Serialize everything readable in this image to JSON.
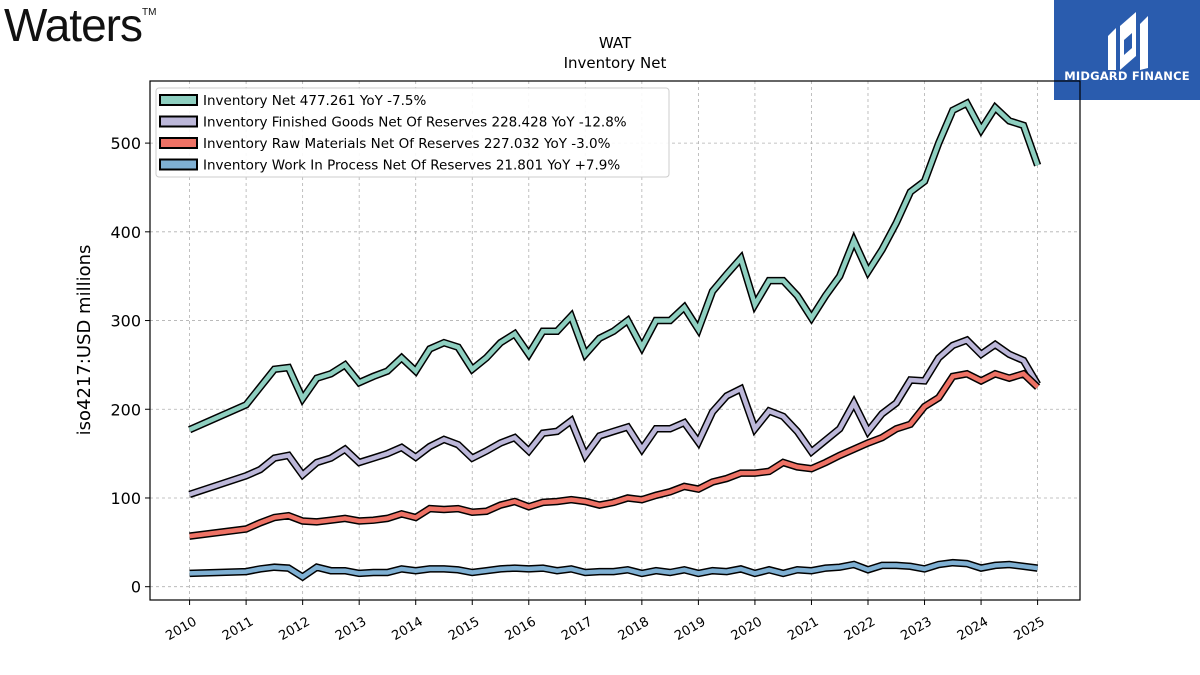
{
  "logo": {
    "company": "Waters",
    "tm": "TM"
  },
  "brand": {
    "name": "MIDGARD FINANCE",
    "color": "#2a5cae"
  },
  "chart_data": {
    "type": "line",
    "title": "WAT",
    "subtitle": "Inventory Net",
    "ylabel": "iso4217:USD  millions",
    "xlabel": "",
    "ylim": [
      -15,
      570
    ],
    "xlim": [
      2009.3,
      2025.75
    ],
    "yticks": [
      0,
      100,
      200,
      300,
      400,
      500
    ],
    "xticks": [
      "2010",
      "2011",
      "2012",
      "2013",
      "2014",
      "2015",
      "2016",
      "2017",
      "2018",
      "2019",
      "2020",
      "2021",
      "2022",
      "2023",
      "2024",
      "2025"
    ],
    "grid": true,
    "legend_position": "top-left",
    "series": [
      {
        "name": "Inventory Net  477.261 YoY -7.5%",
        "color": "#8ecfc0",
        "points": [
          [
            2010.0,
            177
          ],
          [
            2011.0,
            205
          ],
          [
            2011.25,
            225
          ],
          [
            2011.5,
            245
          ],
          [
            2011.75,
            247
          ],
          [
            2012.0,
            212
          ],
          [
            2012.25,
            235
          ],
          [
            2012.5,
            240
          ],
          [
            2012.75,
            250
          ],
          [
            2013.0,
            230
          ],
          [
            2013.25,
            237
          ],
          [
            2013.5,
            243
          ],
          [
            2013.75,
            258
          ],
          [
            2014.0,
            243
          ],
          [
            2014.25,
            268
          ],
          [
            2014.5,
            275
          ],
          [
            2014.75,
            270
          ],
          [
            2015.0,
            245
          ],
          [
            2015.25,
            258
          ],
          [
            2015.5,
            275
          ],
          [
            2015.75,
            285
          ],
          [
            2016.0,
            262
          ],
          [
            2016.25,
            288
          ],
          [
            2016.5,
            288
          ],
          [
            2016.75,
            305
          ],
          [
            2017.0,
            262
          ],
          [
            2017.25,
            280
          ],
          [
            2017.5,
            288
          ],
          [
            2017.75,
            300
          ],
          [
            2018.0,
            270
          ],
          [
            2018.25,
            300
          ],
          [
            2018.5,
            300
          ],
          [
            2018.75,
            315
          ],
          [
            2019.0,
            290
          ],
          [
            2019.25,
            333
          ],
          [
            2019.5,
            352
          ],
          [
            2019.75,
            370
          ],
          [
            2020.0,
            318
          ],
          [
            2020.25,
            345
          ],
          [
            2020.5,
            345
          ],
          [
            2020.75,
            328
          ],
          [
            2021.0,
            303
          ],
          [
            2021.25,
            328
          ],
          [
            2021.5,
            350
          ],
          [
            2021.75,
            390
          ],
          [
            2022.0,
            355
          ],
          [
            2022.25,
            380
          ],
          [
            2022.5,
            410
          ],
          [
            2022.75,
            445
          ],
          [
            2023.0,
            457
          ],
          [
            2023.25,
            500
          ],
          [
            2023.5,
            537
          ],
          [
            2023.75,
            545
          ],
          [
            2024.0,
            515
          ],
          [
            2024.25,
            540
          ],
          [
            2024.5,
            525
          ],
          [
            2024.75,
            520
          ],
          [
            2025.0,
            475
          ]
        ]
      },
      {
        "name": "Inventory Finished Goods Net Of Reserves  228.428 YoY -12.8%",
        "color": "#bcb7d9",
        "points": [
          [
            2010.0,
            104
          ],
          [
            2011.0,
            125
          ],
          [
            2011.25,
            132
          ],
          [
            2011.5,
            145
          ],
          [
            2011.75,
            148
          ],
          [
            2012.0,
            126
          ],
          [
            2012.25,
            140
          ],
          [
            2012.5,
            145
          ],
          [
            2012.75,
            155
          ],
          [
            2013.0,
            140
          ],
          [
            2013.25,
            145
          ],
          [
            2013.5,
            150
          ],
          [
            2013.75,
            157
          ],
          [
            2014.0,
            146
          ],
          [
            2014.25,
            158
          ],
          [
            2014.5,
            166
          ],
          [
            2014.75,
            160
          ],
          [
            2015.0,
            145
          ],
          [
            2015.25,
            153
          ],
          [
            2015.5,
            162
          ],
          [
            2015.75,
            168
          ],
          [
            2016.0,
            153
          ],
          [
            2016.25,
            173
          ],
          [
            2016.5,
            175
          ],
          [
            2016.75,
            187
          ],
          [
            2017.0,
            148
          ],
          [
            2017.25,
            170
          ],
          [
            2017.5,
            175
          ],
          [
            2017.75,
            180
          ],
          [
            2018.0,
            155
          ],
          [
            2018.25,
            178
          ],
          [
            2018.5,
            178
          ],
          [
            2018.75,
            185
          ],
          [
            2019.0,
            163
          ],
          [
            2019.25,
            197
          ],
          [
            2019.5,
            215
          ],
          [
            2019.75,
            223
          ],
          [
            2020.0,
            178
          ],
          [
            2020.25,
            198
          ],
          [
            2020.5,
            192
          ],
          [
            2020.75,
            175
          ],
          [
            2021.0,
            152
          ],
          [
            2021.25,
            165
          ],
          [
            2021.5,
            178
          ],
          [
            2021.75,
            207
          ],
          [
            2022.0,
            175
          ],
          [
            2022.25,
            195
          ],
          [
            2022.5,
            207
          ],
          [
            2022.75,
            233
          ],
          [
            2023.0,
            232
          ],
          [
            2023.25,
            258
          ],
          [
            2023.5,
            272
          ],
          [
            2023.75,
            278
          ],
          [
            2024.0,
            262
          ],
          [
            2024.25,
            273
          ],
          [
            2024.5,
            262
          ],
          [
            2024.75,
            255
          ],
          [
            2025.0,
            228
          ]
        ]
      },
      {
        "name": "Inventory Raw Materials Net Of Reserves  227.032 YoY -3.0%",
        "color": "#ee7265",
        "points": [
          [
            2010.0,
            57
          ],
          [
            2011.0,
            65
          ],
          [
            2011.25,
            72
          ],
          [
            2011.5,
            78
          ],
          [
            2011.75,
            80
          ],
          [
            2012.0,
            74
          ],
          [
            2012.25,
            73
          ],
          [
            2012.5,
            75
          ],
          [
            2012.75,
            77
          ],
          [
            2013.0,
            74
          ],
          [
            2013.25,
            75
          ],
          [
            2013.5,
            77
          ],
          [
            2013.75,
            82
          ],
          [
            2014.0,
            78
          ],
          [
            2014.25,
            88
          ],
          [
            2014.5,
            87
          ],
          [
            2014.75,
            88
          ],
          [
            2015.0,
            84
          ],
          [
            2015.25,
            85
          ],
          [
            2015.5,
            92
          ],
          [
            2015.75,
            96
          ],
          [
            2016.0,
            90
          ],
          [
            2016.25,
            95
          ],
          [
            2016.5,
            96
          ],
          [
            2016.75,
            98
          ],
          [
            2017.0,
            96
          ],
          [
            2017.25,
            92
          ],
          [
            2017.5,
            95
          ],
          [
            2017.75,
            100
          ],
          [
            2018.0,
            98
          ],
          [
            2018.25,
            103
          ],
          [
            2018.5,
            107
          ],
          [
            2018.75,
            113
          ],
          [
            2019.0,
            110
          ],
          [
            2019.25,
            118
          ],
          [
            2019.5,
            122
          ],
          [
            2019.75,
            128
          ],
          [
            2020.0,
            128
          ],
          [
            2020.25,
            130
          ],
          [
            2020.5,
            140
          ],
          [
            2020.75,
            135
          ],
          [
            2021.0,
            133
          ],
          [
            2021.25,
            140
          ],
          [
            2021.5,
            148
          ],
          [
            2021.75,
            155
          ],
          [
            2022.0,
            162
          ],
          [
            2022.25,
            168
          ],
          [
            2022.5,
            178
          ],
          [
            2022.75,
            183
          ],
          [
            2023.0,
            203
          ],
          [
            2023.25,
            213
          ],
          [
            2023.5,
            237
          ],
          [
            2023.75,
            240
          ],
          [
            2024.0,
            232
          ],
          [
            2024.25,
            240
          ],
          [
            2024.5,
            235
          ],
          [
            2024.75,
            240
          ],
          [
            2025.0,
            225
          ]
        ]
      },
      {
        "name": "Inventory Work In Process Net Of Reserves  21.801 YoY +7.9%",
        "color": "#7fb0d3",
        "points": [
          [
            2010.0,
            15
          ],
          [
            2011.0,
            17
          ],
          [
            2011.25,
            20
          ],
          [
            2011.5,
            22
          ],
          [
            2011.75,
            21
          ],
          [
            2012.0,
            11
          ],
          [
            2012.25,
            22
          ],
          [
            2012.5,
            18
          ],
          [
            2012.75,
            18
          ],
          [
            2013.0,
            15
          ],
          [
            2013.25,
            16
          ],
          [
            2013.5,
            16
          ],
          [
            2013.75,
            20
          ],
          [
            2014.0,
            18
          ],
          [
            2014.25,
            20
          ],
          [
            2014.5,
            20
          ],
          [
            2014.75,
            19
          ],
          [
            2015.0,
            16
          ],
          [
            2015.25,
            18
          ],
          [
            2015.5,
            20
          ],
          [
            2015.75,
            21
          ],
          [
            2016.0,
            20
          ],
          [
            2016.25,
            21
          ],
          [
            2016.5,
            18
          ],
          [
            2016.75,
            20
          ],
          [
            2017.0,
            16
          ],
          [
            2017.25,
            17
          ],
          [
            2017.5,
            17
          ],
          [
            2017.75,
            19
          ],
          [
            2018.0,
            15
          ],
          [
            2018.25,
            18
          ],
          [
            2018.5,
            16
          ],
          [
            2018.75,
            19
          ],
          [
            2019.0,
            15
          ],
          [
            2019.25,
            18
          ],
          [
            2019.5,
            17
          ],
          [
            2019.75,
            20
          ],
          [
            2020.0,
            15
          ],
          [
            2020.25,
            19
          ],
          [
            2020.5,
            15
          ],
          [
            2020.75,
            19
          ],
          [
            2021.0,
            18
          ],
          [
            2021.25,
            21
          ],
          [
            2021.5,
            22
          ],
          [
            2021.75,
            25
          ],
          [
            2022.0,
            19
          ],
          [
            2022.25,
            24
          ],
          [
            2022.5,
            24
          ],
          [
            2022.75,
            23
          ],
          [
            2023.0,
            20
          ],
          [
            2023.25,
            25
          ],
          [
            2023.5,
            27
          ],
          [
            2023.75,
            26
          ],
          [
            2024.0,
            21
          ],
          [
            2024.25,
            24
          ],
          [
            2024.5,
            25
          ],
          [
            2024.75,
            23
          ],
          [
            2025.0,
            21
          ]
        ]
      }
    ]
  }
}
